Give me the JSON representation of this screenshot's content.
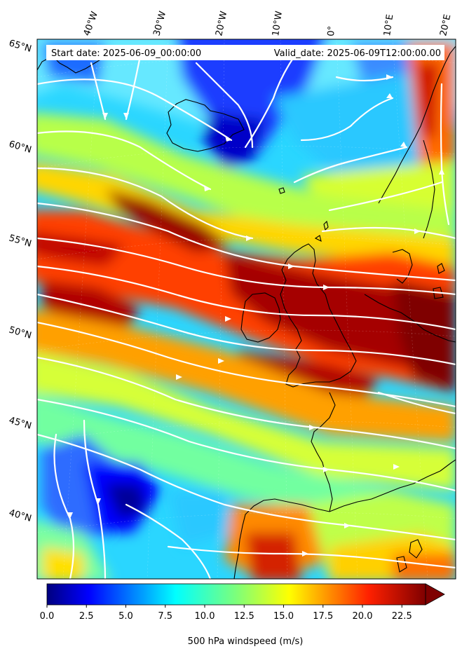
{
  "header": {
    "start_date": "Start date: 2025-06-09_00:00:00",
    "valid_date": "Valid_date: 2025-06-09T12:00:00.00"
  },
  "map": {
    "lon_labels": [
      "40°W",
      "30°W",
      "20°W",
      "10°W",
      "0°",
      "10°E",
      "20°E"
    ],
    "lat_labels": [
      "65°N",
      "60°N",
      "55°N",
      "50°N",
      "45°N",
      "40°N"
    ],
    "field": "500 hPa windspeed",
    "streamline_color": "#ffffff",
    "coastline_color": "#000000"
  },
  "colorbar": {
    "label": "500 hPa windspeed (m/s)",
    "ticks": [
      "0.0",
      "2.5",
      "5.0",
      "7.5",
      "10.0",
      "12.5",
      "15.0",
      "17.5",
      "20.0",
      "22.5"
    ],
    "min": 0,
    "max": 25,
    "extend": "max",
    "colormap": "jet"
  }
}
